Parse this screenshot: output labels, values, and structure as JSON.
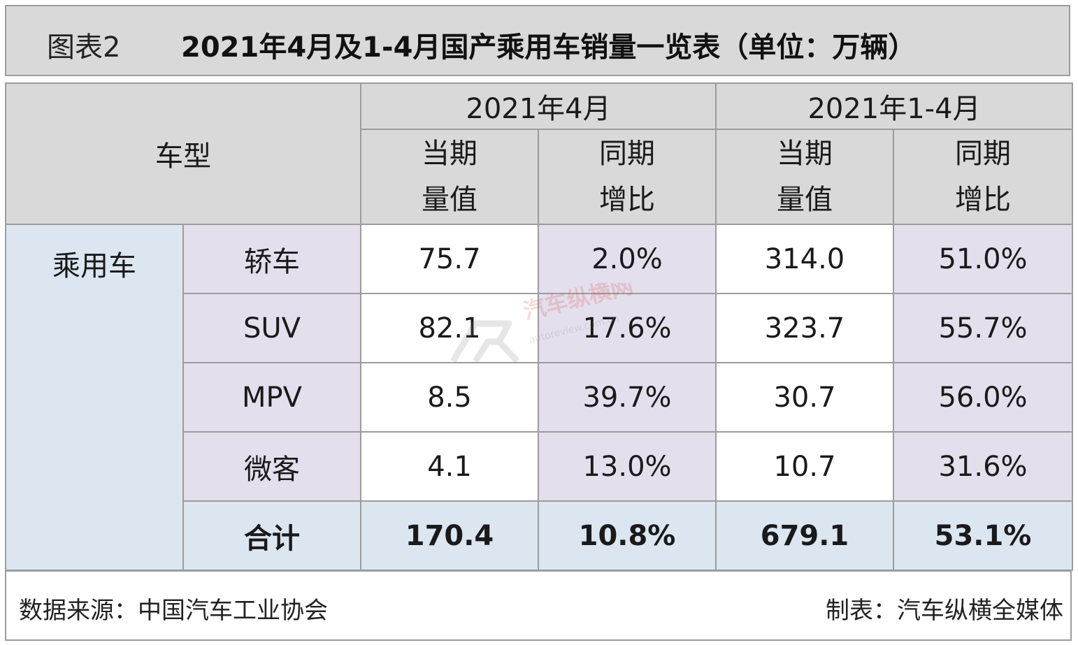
{
  "title": {
    "label": "图表2",
    "main": "2021年4月及1-4月国产乘用车销量一览表（单位：万辆）"
  },
  "table": {
    "header": {
      "model": "车型",
      "period_month": "2021年4月",
      "period_ytd": "2021年1-4月",
      "current_line1": "当期",
      "current_line2": "量值",
      "yoy_line1": "同期",
      "yoy_line2": "增比"
    },
    "category": "乘用车",
    "rows": [
      {
        "type": "轿车",
        "apr_value": "75.7",
        "apr_yoy": "2.0%",
        "ytd_value": "314.0",
        "ytd_yoy": "51.0%"
      },
      {
        "type": "SUV",
        "apr_value": "82.1",
        "apr_yoy": "17.6%",
        "ytd_value": "323.7",
        "ytd_yoy": "55.7%"
      },
      {
        "type": "MPV",
        "apr_value": "8.5",
        "apr_yoy": "39.7%",
        "ytd_value": "30.7",
        "ytd_yoy": "56.0%"
      },
      {
        "type": "微客",
        "apr_value": "4.1",
        "apr_yoy": "13.0%",
        "ytd_value": "10.7",
        "ytd_yoy": "31.6%"
      }
    ],
    "total": {
      "label": "合计",
      "apr_value": "170.4",
      "apr_yoy": "10.8%",
      "ytd_value": "679.1",
      "ytd_yoy": "53.1%"
    }
  },
  "footer": {
    "source": "数据来源：中国汽车工业协会",
    "made_by": "制表：汽车纵横全媒体"
  },
  "watermark": {
    "text_cn": "汽车纵横网",
    "text_url": "autoreview.com.cn"
  },
  "colors": {
    "header_gray": "#d9d9d9",
    "light_blue": "#dce6f1",
    "lavender": "#e4dfec",
    "border": "#9c9c9c"
  },
  "chart_data": {
    "type": "table",
    "title": "2021年4月及1-4月国产乘用车销量一览表（单位：万辆）",
    "columns": [
      "车型",
      "2021年4月 当期量值",
      "2021年4月 同期增比",
      "2021年1-4月 当期量值",
      "2021年1-4月 同期增比"
    ],
    "rows": [
      [
        "轿车",
        75.7,
        "2.0%",
        314.0,
        "51.0%"
      ],
      [
        "SUV",
        82.1,
        "17.6%",
        323.7,
        "55.7%"
      ],
      [
        "MPV",
        8.5,
        "39.7%",
        30.7,
        "56.0%"
      ],
      [
        "微客",
        4.1,
        "13.0%",
        10.7,
        "31.6%"
      ],
      [
        "合计",
        170.4,
        "10.8%",
        679.1,
        "53.1%"
      ]
    ]
  }
}
